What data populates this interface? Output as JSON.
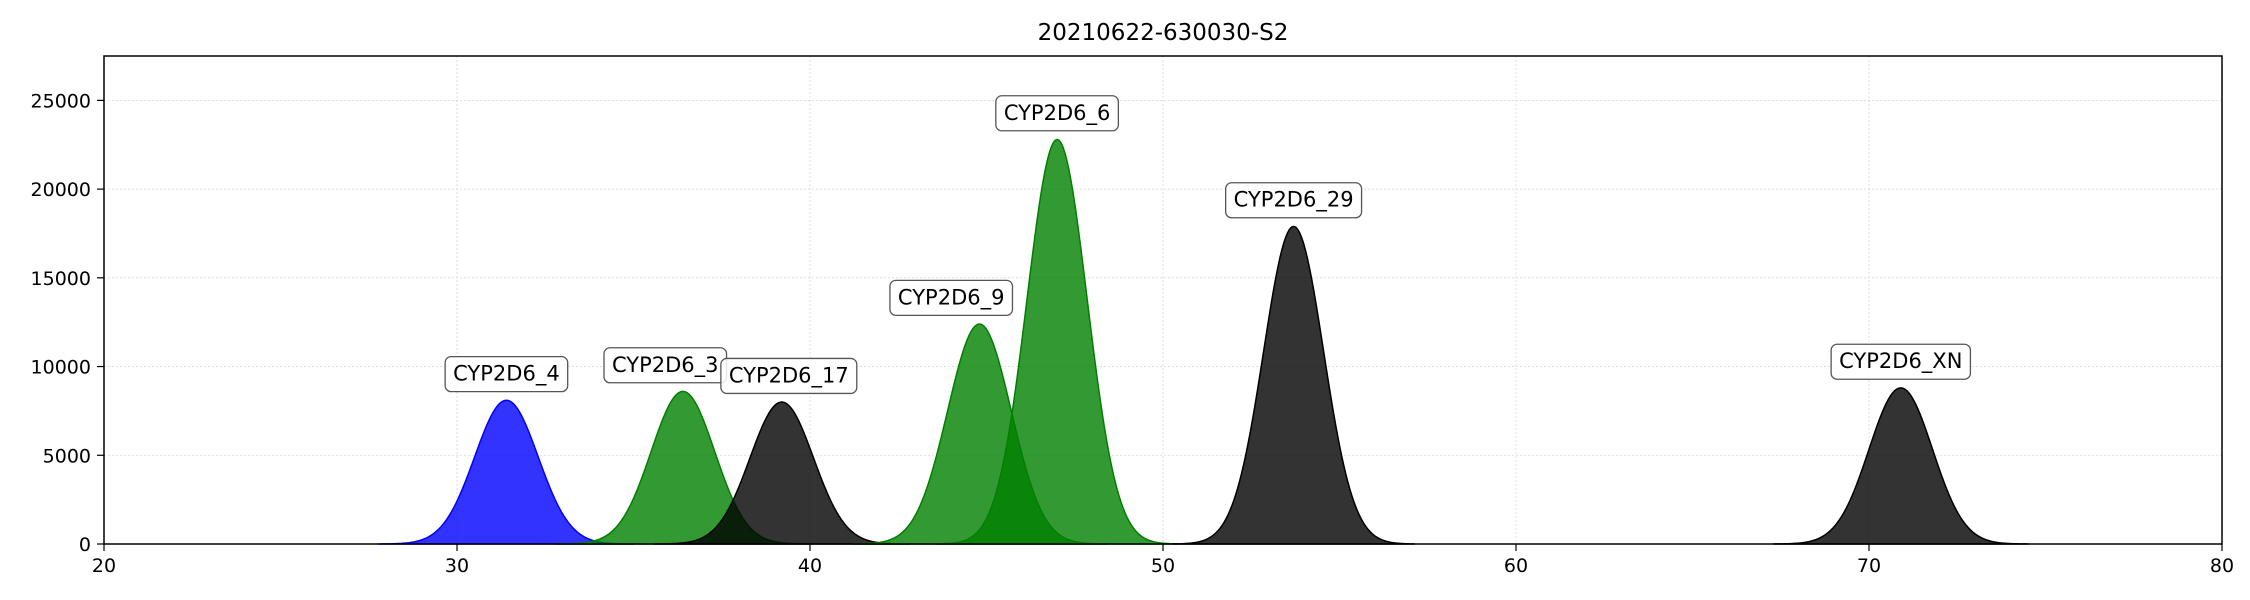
{
  "chart_data": {
    "type": "area",
    "title": "20210622-630030-S2",
    "xlabel": "",
    "ylabel": "",
    "xlim": [
      20,
      80
    ],
    "ylim": [
      0,
      27500
    ],
    "xticks": [
      20,
      30,
      40,
      50,
      60,
      70,
      80
    ],
    "yticks": [
      0,
      5000,
      10000,
      15000,
      20000,
      25000
    ],
    "grid": true,
    "peaks": [
      {
        "label": "CYP2D6_4",
        "center": 31.4,
        "height": 8100,
        "sigma": 0.9,
        "color": "#0000ff",
        "label_x": 31.4,
        "label_y": 9600
      },
      {
        "label": "CYP2D6_3",
        "center": 36.4,
        "height": 8600,
        "sigma": 0.9,
        "color": "#008000",
        "label_x": 35.9,
        "label_y": 10100
      },
      {
        "label": "CYP2D6_17",
        "center": 39.2,
        "height": 8000,
        "sigma": 0.9,
        "color": "#000000",
        "label_x": 39.4,
        "label_y": 9500
      },
      {
        "label": "CYP2D6_9",
        "center": 44.8,
        "height": 12400,
        "sigma": 0.9,
        "color": "#008000",
        "label_x": 44.0,
        "label_y": 13900
      },
      {
        "label": "CYP2D6_6",
        "center": 47.0,
        "height": 22800,
        "sigma": 0.85,
        "color": "#008000",
        "label_x": 47.0,
        "label_y": 24300
      },
      {
        "label": "CYP2D6_29",
        "center": 53.7,
        "height": 17900,
        "sigma": 0.85,
        "color": "#000000",
        "label_x": 53.7,
        "label_y": 19400
      },
      {
        "label": "CYP2D6_XN",
        "center": 70.9,
        "height": 8800,
        "sigma": 0.9,
        "color": "#000000",
        "label_x": 70.9,
        "label_y": 10300
      }
    ]
  }
}
